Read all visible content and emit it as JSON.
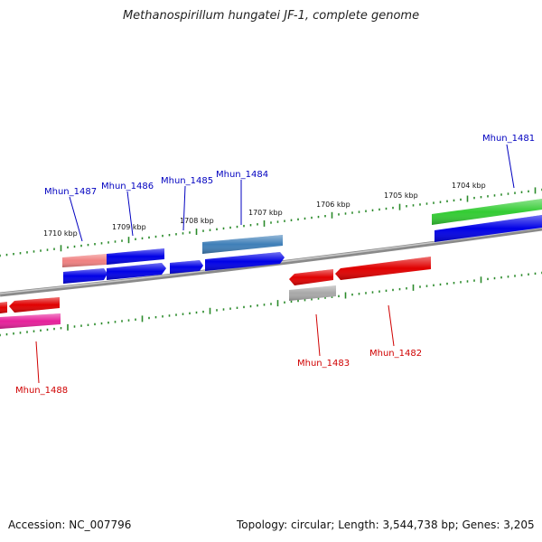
{
  "title": "Methanospirillum hungatei JF-1, complete genome",
  "footer": {
    "accession": "Accession: NC_007796",
    "summary": "Topology: circular; Length: 3,544,738 bp; Genes: 3,205"
  },
  "colors": {
    "backbone": "#8a8a8a",
    "tick": "#2a8a2a",
    "blue": "#0000e6",
    "red": "#e00000",
    "green": "#33cc33",
    "steelblue": "#3f7fb8",
    "salmon": "#f08080",
    "magenta": "#e6209a",
    "gray": "#a8a8a8",
    "label_top": "#0000c0",
    "label_bottom": "#d00000"
  },
  "scale_labels": [
    "1710 kbp",
    "1709 kbp",
    "1708 kbp",
    "1707 kbp",
    "1706 kbp",
    "1705 kbp",
    "1704 kbp"
  ],
  "gene_labels": [
    {
      "name": "Mhun_1481",
      "side": "top"
    },
    {
      "name": "Mhun_1484",
      "side": "top"
    },
    {
      "name": "Mhun_1485",
      "side": "top"
    },
    {
      "name": "Mhun_1486",
      "side": "top"
    },
    {
      "name": "Mhun_1487",
      "side": "top"
    },
    {
      "name": "Mhun_1482",
      "side": "bottom"
    },
    {
      "name": "Mhun_1483",
      "side": "bottom"
    },
    {
      "name": "Mhun_1488",
      "side": "bottom"
    }
  ]
}
